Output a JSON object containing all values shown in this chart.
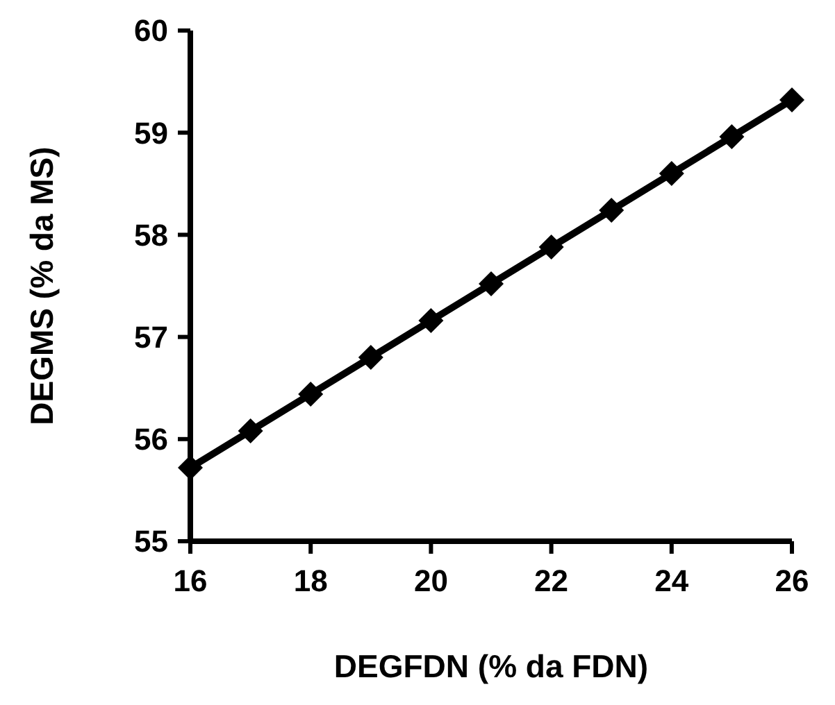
{
  "chart_data": {
    "type": "line",
    "xlabel": "DEGFDN (% da FDN)",
    "ylabel": "DEGMS (% da MS)",
    "x": [
      16,
      17,
      18,
      19,
      20,
      21,
      22,
      23,
      24,
      25,
      26
    ],
    "series": [
      {
        "color": "#000000",
        "values": [
          55.72,
          56.08,
          56.44,
          56.8,
          57.16,
          57.52,
          57.88,
          58.24,
          58.6,
          58.96,
          59.32
        ]
      }
    ],
    "xlim": [
      16,
      26
    ],
    "xticks": [
      16,
      18,
      20,
      22,
      24,
      26
    ],
    "ylim": [
      55,
      60
    ],
    "yticks": [
      55,
      56,
      57,
      58,
      59,
      60
    ],
    "marker": "diamond",
    "line_style": "solid"
  }
}
